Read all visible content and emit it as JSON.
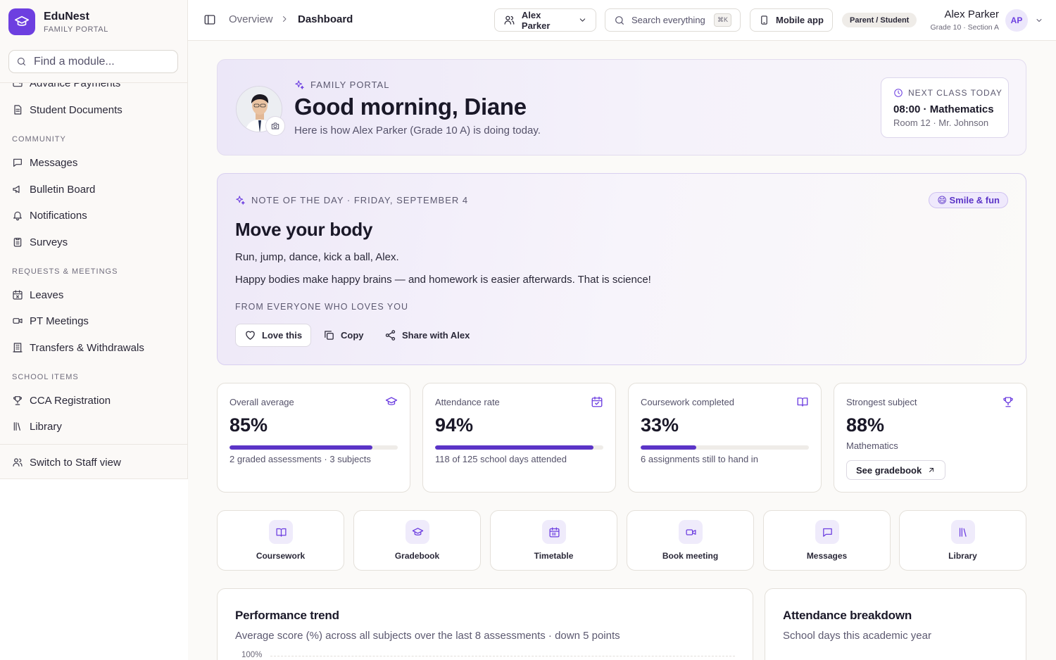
{
  "brand": {
    "name": "EduNest",
    "subtitle": "FAMILY PORTAL"
  },
  "sidebar": {
    "search_placeholder": "Find a module...",
    "partial_item": "Advance Payments",
    "items_top": [
      {
        "label": "Student Documents",
        "icon": "file-icon"
      }
    ],
    "sections": [
      {
        "title": "COMMUNITY",
        "items": [
          {
            "label": "Messages",
            "icon": "message-icon"
          },
          {
            "label": "Bulletin Board",
            "icon": "megaphone-icon"
          },
          {
            "label": "Notifications",
            "icon": "bell-icon"
          },
          {
            "label": "Surveys",
            "icon": "clipboard-icon"
          }
        ]
      },
      {
        "title": "REQUESTS & MEETINGS",
        "items": [
          {
            "label": "Leaves",
            "icon": "calendar-x-icon"
          },
          {
            "label": "PT Meetings",
            "icon": "video-icon"
          },
          {
            "label": "Transfers & Withdrawals",
            "icon": "building-icon"
          }
        ]
      },
      {
        "title": "SCHOOL ITEMS",
        "items": [
          {
            "label": "CCA Registration",
            "icon": "trophy-icon"
          },
          {
            "label": "Library",
            "icon": "library-icon"
          }
        ]
      }
    ],
    "footer_item": "Switch to Staff view"
  },
  "topbar": {
    "breadcrumb": [
      "Overview",
      "Dashboard"
    ],
    "student_selector": "Alex Parker",
    "search_label": "Search everything",
    "search_shortcut": "⌘K",
    "mobile_app": "Mobile app",
    "role_badge": "Parent / Student",
    "user_name": "Alex Parker",
    "user_sub": "Grade 10 · Section A",
    "avatar_initials": "AP"
  },
  "hero": {
    "eyebrow": "FAMILY PORTAL",
    "greeting": "Good morning, Diane",
    "subtitle": "Here is how Alex Parker (Grade 10 A) is doing today.",
    "next_class_label": "NEXT CLASS TODAY",
    "next_class_main": "08:00 · Mathematics",
    "next_class_sub": "Room 12 · Mr. Johnson"
  },
  "note": {
    "eyebrow": "NOTE OF THE DAY · FRIDAY, SEPTEMBER 4",
    "badge": "😄 Smile & fun",
    "title": "Move your body",
    "line1": "Run, jump, dance, kick a ball, Alex.",
    "line2": "Happy bodies make happy brains — and homework is easier afterwards. That is science!",
    "from": "FROM EVERYONE WHO LOVES YOU",
    "actions": {
      "love": "Love this",
      "copy": "Copy",
      "share": "Share with Alex"
    }
  },
  "stats": [
    {
      "label": "Overall average",
      "value": "85%",
      "progress": 0.85,
      "foot": "2 graded assessments · 3 subjects",
      "icon": "graduation-cap-icon"
    },
    {
      "label": "Attendance rate",
      "value": "94%",
      "progress": 0.94,
      "foot": "118 of 125 school days attended",
      "icon": "calendar-check-icon"
    },
    {
      "label": "Coursework completed",
      "value": "33%",
      "progress": 0.33,
      "foot": "6 assignments still to hand in",
      "icon": "book-open-icon"
    },
    {
      "label": "Strongest subject",
      "value": "88%",
      "foot": "Mathematics",
      "button": "See gradebook",
      "icon": "trophy-icon"
    }
  ],
  "quick_links": [
    {
      "label": "Coursework",
      "icon": "book-open-icon"
    },
    {
      "label": "Gradebook",
      "icon": "graduation-cap-icon"
    },
    {
      "label": "Timetable",
      "icon": "calendar-icon"
    },
    {
      "label": "Book meeting",
      "icon": "video-icon"
    },
    {
      "label": "Messages",
      "icon": "message-icon"
    },
    {
      "label": "Library",
      "icon": "library-icon"
    }
  ],
  "performance": {
    "title": "Performance trend",
    "subtitle": "Average score (%) across all subjects over the last 8 assessments · down 5 points",
    "y_top_label": "100%"
  },
  "attendance": {
    "title": "Attendance breakdown",
    "subtitle": "School days this academic year"
  },
  "colors": {
    "accent": "#6d3fe0",
    "accent_dark": "#5b34c7",
    "badge_bg": "#efe9fc"
  }
}
